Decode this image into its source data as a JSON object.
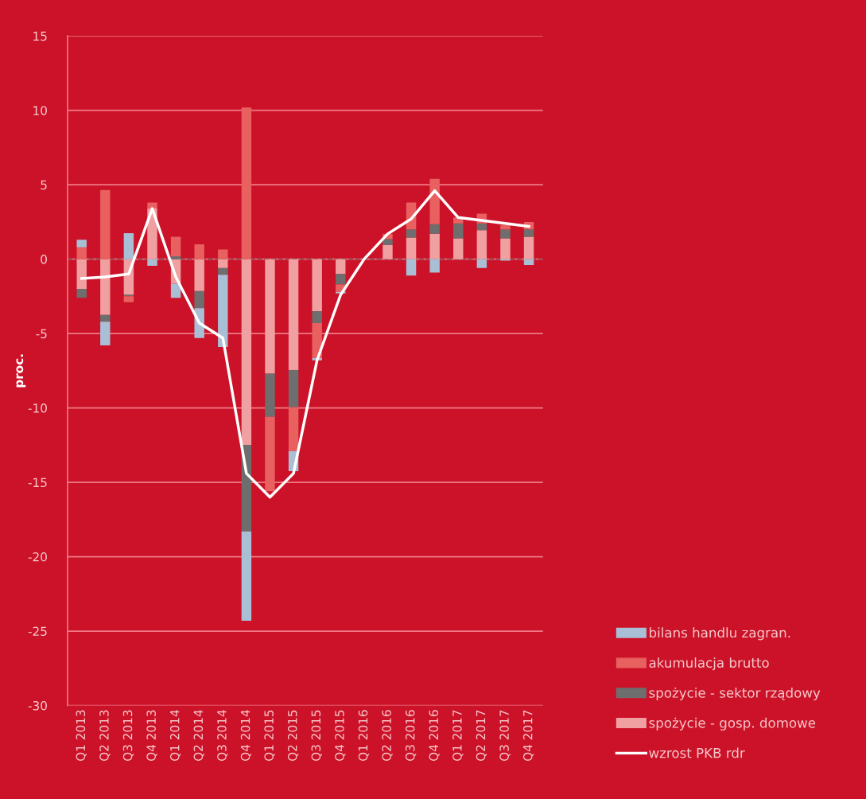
{
  "chart_data": {
    "type": "bar",
    "stacked": true,
    "ylabel": "proc.",
    "categories": [
      "Q1 2013",
      "Q2 2013",
      "Q3 2013",
      "Q4 2013",
      "Q1 2014",
      "Q2 2014",
      "Q3 2014",
      "Q4 2014",
      "Q1 2015",
      "Q2 2015",
      "Q3 2015",
      "Q4 2015",
      "Q1 2016",
      "Q2 2016",
      "Q3 2016",
      "Q4 2016",
      "Q1 2017",
      "Q2 2017",
      "Q3 2017",
      "Q4 2017"
    ],
    "series": [
      {
        "name": "spożycie - gosp. domowe",
        "color": "#f0a0a0",
        "values": [
          -2.0,
          -3.75,
          -2.4,
          3.4,
          -1.65,
          -2.15,
          -0.6,
          -12.5,
          -7.7,
          -7.45,
          -3.5,
          -1.0,
          0,
          0.95,
          1.45,
          1.7,
          1.4,
          1.95,
          1.4,
          1.5
        ]
      },
      {
        "name": "spożycie - sektor rządowy",
        "color": "#6e6e6e",
        "values": [
          -0.6,
          -0.45,
          -0.1,
          0,
          0.2,
          -1.15,
          -0.45,
          -5.8,
          -2.9,
          -2.5,
          -0.8,
          -0.7,
          0,
          0.4,
          0.55,
          0.65,
          1.0,
          0.45,
          0.6,
          0.5
        ]
      },
      {
        "name": "akumulacja brutto",
        "color": "#e8605f",
        "values": [
          0.8,
          4.65,
          -0.4,
          0.4,
          1.3,
          1.0,
          0.65,
          10.2,
          -5.0,
          -2.95,
          -2.35,
          -0.5,
          0,
          0.35,
          1.8,
          3.05,
          0.4,
          0.65,
          0.3,
          0.5
        ]
      },
      {
        "name": "bilans handlu zagran.",
        "color": "#a9bfd6",
        "values": [
          0.5,
          -1.6,
          1.75,
          -0.45,
          -0.95,
          -2.0,
          -4.85,
          -6.0,
          0,
          -1.35,
          -0.15,
          -0.1,
          0,
          0,
          -1.1,
          -0.9,
          0,
          -0.6,
          -0.1,
          -0.4
        ]
      },
      {
        "name": "wzrost PKB rdr",
        "type": "line",
        "color": "#ffffff",
        "values": [
          -1.3,
          -1.2,
          -1.0,
          3.4,
          -1.2,
          -4.3,
          -5.3,
          -14.4,
          -16.0,
          -14.4,
          -6.8,
          -2.4,
          0,
          1.7,
          2.7,
          4.6,
          2.8,
          2.6,
          2.4,
          2.2
        ]
      }
    ],
    "ylim": [
      -30,
      15
    ],
    "yticks": [
      -30,
      -25,
      -20,
      -15,
      -10,
      -5,
      0,
      5,
      10,
      15
    ],
    "grid": "y",
    "legend": "bottom right",
    "ref_lines": [
      {
        "axis": "y",
        "value": 0,
        "color": "#8a4a50",
        "line_style": "dashed"
      }
    ]
  }
}
